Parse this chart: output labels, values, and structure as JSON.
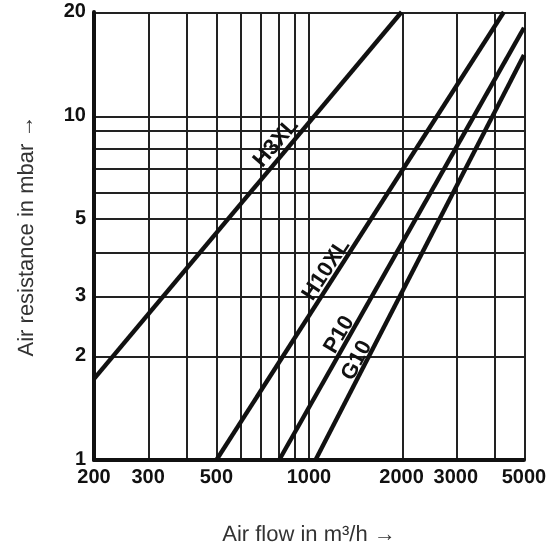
{
  "chart_data": {
    "type": "line",
    "xlabel": "Air flow in m³/h →",
    "ylabel": "Air resistance in mbar →",
    "log": "xy",
    "grid": true,
    "legend": false,
    "marker": "none",
    "line_style": "solid",
    "xlim": [
      200,
      5000
    ],
    "ylim": [
      1,
      20
    ],
    "xticks": [
      200,
      300,
      {
        "value": 400,
        "label": null
      },
      500,
      {
        "value": 600,
        "label": null
      },
      {
        "value": 700,
        "label": null
      },
      {
        "value": 800,
        "label": null
      },
      {
        "value": 900,
        "label": null
      },
      1000,
      2000,
      3000,
      {
        "value": 4000,
        "label": null
      },
      5000
    ],
    "yticks": [
      1,
      2,
      3,
      {
        "value": 4,
        "label": null
      },
      5,
      {
        "value": 6,
        "label": null
      },
      {
        "value": 7,
        "label": null
      },
      {
        "value": 8,
        "label": null
      },
      {
        "value": 9,
        "label": null
      },
      10,
      20
    ],
    "series": [
      {
        "name": "H3XL",
        "color": "#111111",
        "x": [
          200,
          2000
        ],
        "values": [
          1.72,
          20
        ]
      },
      {
        "name": "H10XL",
        "color": "#111111",
        "x": [
          500,
          4300
        ],
        "values": [
          1,
          20
        ]
      },
      {
        "name": "P10",
        "color": "#111111",
        "x": [
          800,
          5000
        ],
        "values": [
          1,
          18
        ]
      },
      {
        "name": "G10",
        "color": "#111111",
        "x": [
          1050,
          5000
        ],
        "values": [
          1,
          15
        ]
      }
    ]
  }
}
